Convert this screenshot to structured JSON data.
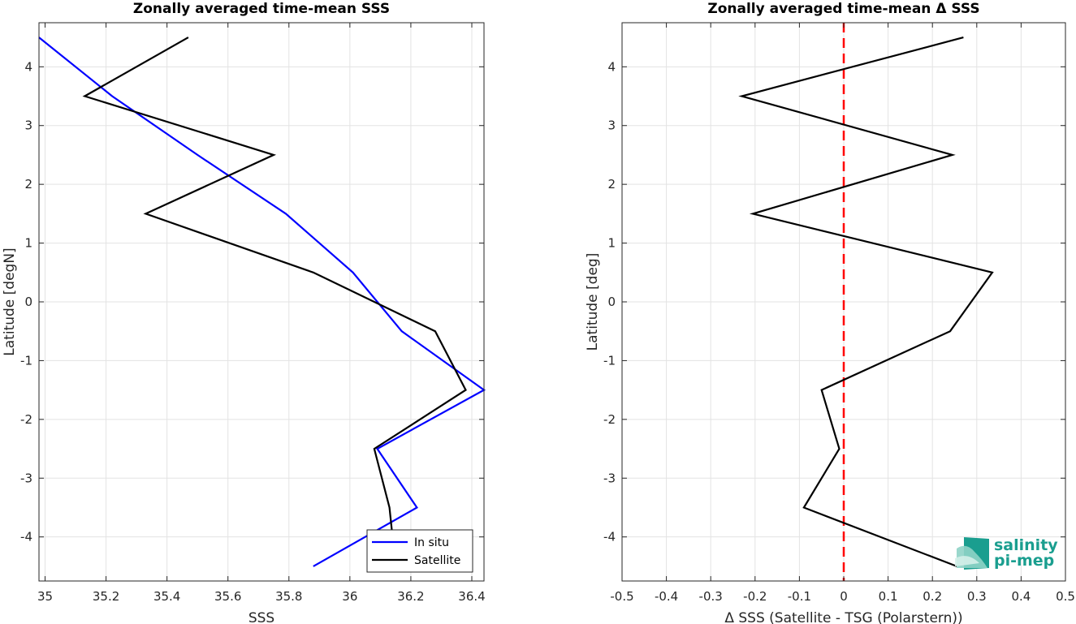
{
  "chart_data": [
    {
      "type": "line",
      "title": "Zonally averaged time-mean SSS",
      "xlabel": "SSS",
      "ylabel": "Latitude [degN]",
      "xlim": [
        34.98,
        36.44
      ],
      "ylim": [
        -4.75,
        4.75
      ],
      "xticks": [
        35,
        35.2,
        35.4,
        35.6,
        35.8,
        36,
        36.2,
        36.4
      ],
      "xtick_labels": [
        "35",
        "35.2",
        "35.4",
        "35.6",
        "35.8",
        "36",
        "36.2",
        "36.4"
      ],
      "yticks": [
        -4,
        -3,
        -2,
        -1,
        0,
        1,
        2,
        3,
        4
      ],
      "ytick_labels": [
        "-4",
        "-3",
        "-2",
        "-1",
        "0",
        "1",
        "2",
        "3",
        "4"
      ],
      "grid": true,
      "legend_placement": "bottom-right",
      "series": [
        {
          "name": "In situ",
          "color": "#0000ff",
          "x": [
            34.98,
            35.22,
            35.5,
            35.79,
            36.01,
            36.17,
            36.44,
            36.09,
            36.22,
            35.88
          ],
          "y": [
            4.5,
            3.5,
            2.5,
            1.5,
            0.5,
            -0.5,
            -1.5,
            -2.5,
            -3.5,
            -4.5
          ]
        },
        {
          "name": "Satellite",
          "color": "#000000",
          "x": [
            35.47,
            35.13,
            35.75,
            35.33,
            35.88,
            36.28,
            36.38,
            36.08,
            36.13,
            36.14
          ],
          "y": [
            4.5,
            3.5,
            2.5,
            1.5,
            0.5,
            -0.5,
            -1.5,
            -2.5,
            -3.5,
            -4.0
          ]
        }
      ]
    },
    {
      "type": "line",
      "title": "Zonally averaged time-mean Δ SSS",
      "xlabel": "Δ SSS (Satellite - TSG (Polarstern))",
      "ylabel": "Latitude [deg]",
      "xlim": [
        -0.5,
        0.5
      ],
      "ylim": [
        -4.75,
        4.75
      ],
      "xticks": [
        -0.5,
        -0.4,
        -0.3,
        -0.2,
        -0.1,
        0,
        0.1,
        0.2,
        0.3,
        0.4,
        0.5
      ],
      "xtick_labels": [
        "-0.5",
        "-0.4",
        "-0.3",
        "-0.2",
        "-0.1",
        "0",
        "0.1",
        "0.2",
        "0.3",
        "0.4",
        "0.5"
      ],
      "yticks": [
        -4,
        -3,
        -2,
        -1,
        0,
        1,
        2,
        3,
        4
      ],
      "ytick_labels": [
        "-4",
        "-3",
        "-2",
        "-1",
        "0",
        "1",
        "2",
        "3",
        "4"
      ],
      "grid": true,
      "reference_line": {
        "x": 0,
        "color": "#ff0000",
        "style": "dashed"
      },
      "series": [
        {
          "color": "#000000",
          "x": [
            0.27,
            -0.23,
            0.245,
            -0.205,
            0.335,
            0.24,
            -0.05,
            -0.01,
            -0.09,
            0.255
          ],
          "y": [
            4.5,
            3.5,
            2.5,
            1.5,
            0.5,
            -0.5,
            -1.5,
            -2.5,
            -3.5,
            -4.5
          ]
        }
      ]
    }
  ],
  "logo": {
    "line1": "salinity",
    "line2": "pi-mep"
  }
}
